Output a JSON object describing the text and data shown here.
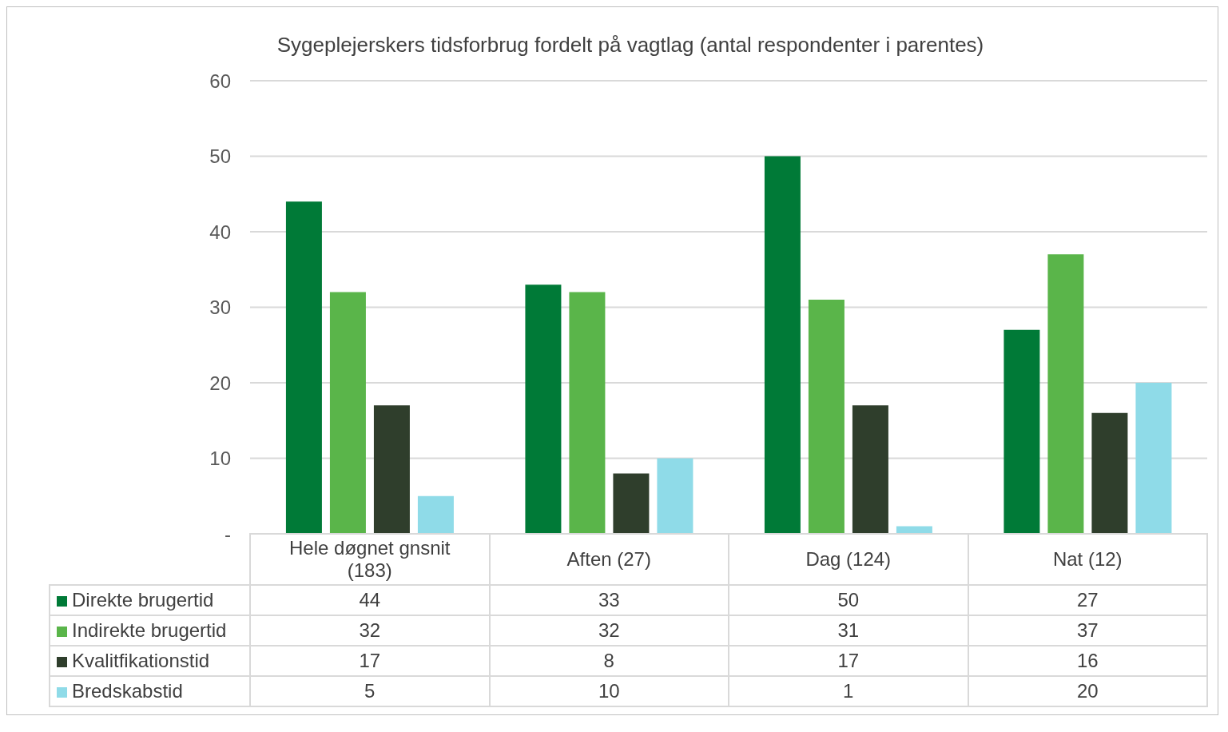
{
  "chart_data": {
    "type": "bar",
    "title": "Sygeplejerskers tidsforbrug fordelt på vagtlag (antal respondenter i parentes)",
    "categories": [
      "Hele døgnet gnsnit (183)",
      "Aften (27)",
      "Dag (124)",
      "Nat (12)"
    ],
    "series": [
      {
        "name": "Direkte brugertid",
        "color": "#007a37",
        "values": [
          44,
          33,
          50,
          27
        ]
      },
      {
        "name": "Indirekte brugertid",
        "color": "#5ab54a",
        "values": [
          32,
          32,
          31,
          37
        ]
      },
      {
        "name": "Kvalitfikationstid",
        "color": "#2f3e2c",
        "values": [
          17,
          8,
          17,
          16
        ]
      },
      {
        "name": "Bredskabstid",
        "color": "#8fdbe8",
        "values": [
          5,
          10,
          1,
          20
        ]
      }
    ],
    "ylim": [
      0,
      60
    ],
    "yticks": [
      {
        "value": 0,
        "label": "-"
      },
      10,
      20,
      30,
      40,
      50,
      60
    ],
    "grid": "y",
    "legend": "bottom",
    "data_labels": true
  }
}
